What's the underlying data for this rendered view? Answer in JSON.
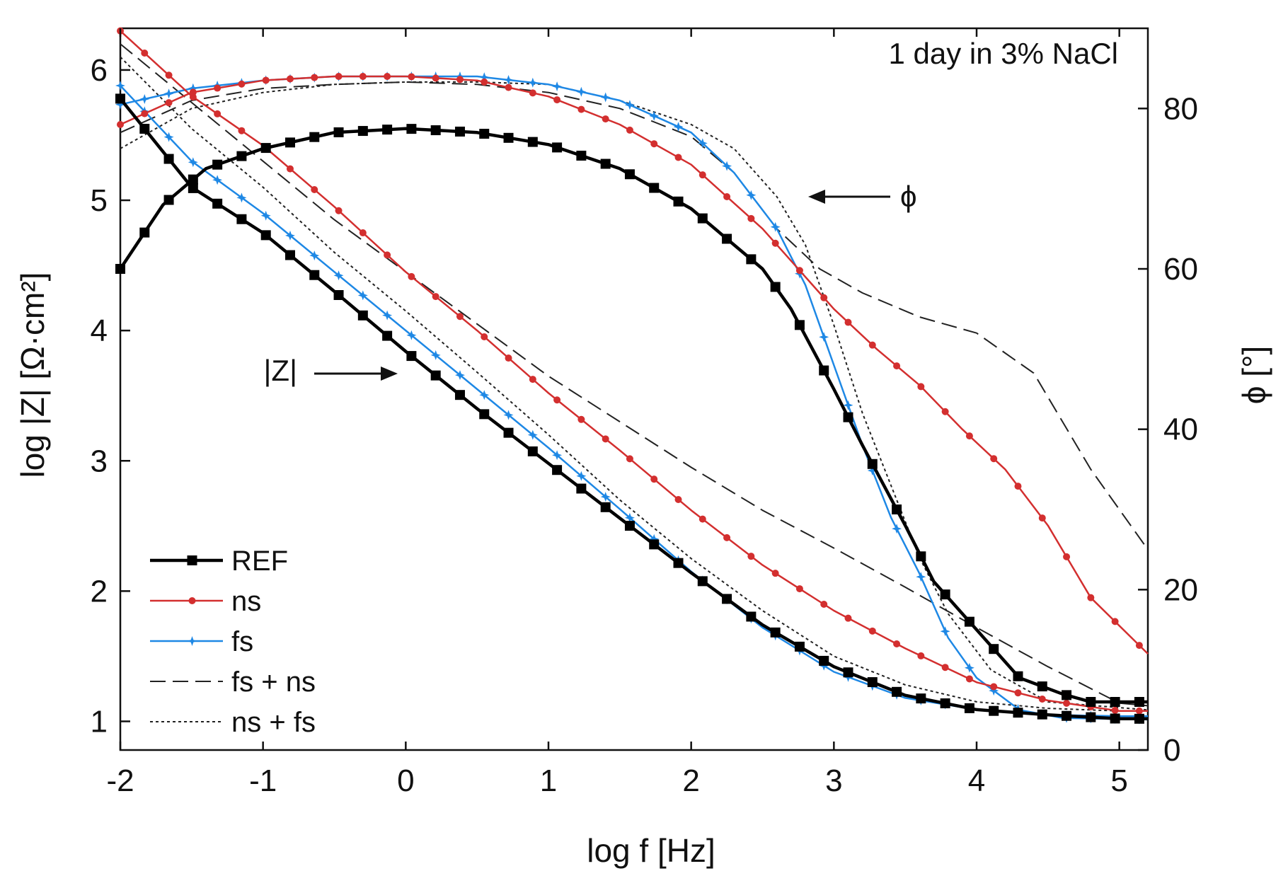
{
  "chart_data": {
    "type": "line",
    "annotation": "1 day in 3% NaCl",
    "xlabel": "log f [Hz]",
    "ylabel_left": "log |Z| [Ω·cm²]",
    "ylabel_right": "ϕ [°]",
    "xlim": [
      -2,
      5.2
    ],
    "ylim_left": [
      0.78,
      6.32
    ],
    "ylim_right": [
      0,
      90
    ],
    "x_ticks": [
      "-2",
      "-1",
      "0",
      "1",
      "2",
      "3",
      "4",
      "5"
    ],
    "y_left_ticks": [
      "1",
      "2",
      "3",
      "4",
      "5",
      "6"
    ],
    "y_right_ticks": [
      "0",
      "20",
      "40",
      "60",
      "80"
    ],
    "arrow_labels": {
      "impedance": "|Z|",
      "phase": "ϕ"
    },
    "colors": {
      "REF": "#000000",
      "ns": "#d32f2f",
      "fs": "#1e88e5",
      "fs_ns": "#222222",
      "ns_fs": "#222222"
    },
    "legend": [
      {
        "key": "REF",
        "label": "REF",
        "style": "solid-thick",
        "marker": "square"
      },
      {
        "key": "ns",
        "label": "ns",
        "style": "solid",
        "marker": "dot"
      },
      {
        "key": "fs",
        "label": "fs",
        "style": "solid",
        "marker": "star"
      },
      {
        "key": "fs_ns",
        "label": "fs + ns",
        "style": "dashed",
        "marker": "none"
      },
      {
        "key": "ns_fs",
        "label": "ns + fs",
        "style": "dotted",
        "marker": "none"
      }
    ],
    "series": [
      {
        "key": "REF",
        "quantity": "logZ",
        "points": [
          [
            -2,
            5.78
          ],
          [
            -1.5,
            5.1
          ],
          [
            -1,
            4.75
          ],
          [
            -0.5,
            4.3
          ],
          [
            0,
            3.84
          ],
          [
            0.5,
            3.4
          ],
          [
            1,
            2.98
          ],
          [
            1.5,
            2.56
          ],
          [
            2,
            2.14
          ],
          [
            2.5,
            1.74
          ],
          [
            3,
            1.42
          ],
          [
            3.5,
            1.2
          ],
          [
            4,
            1.09
          ],
          [
            4.5,
            1.05
          ],
          [
            5,
            1.02
          ],
          [
            5.2,
            1.02
          ]
        ]
      },
      {
        "key": "ns",
        "quantity": "logZ",
        "points": [
          [
            -2,
            6.3
          ],
          [
            -1.5,
            5.8
          ],
          [
            -1,
            5.42
          ],
          [
            -0.5,
            4.95
          ],
          [
            0,
            4.45
          ],
          [
            0.5,
            4.0
          ],
          [
            1,
            3.52
          ],
          [
            1.5,
            3.08
          ],
          [
            2,
            2.62
          ],
          [
            2.5,
            2.2
          ],
          [
            3,
            1.85
          ],
          [
            3.5,
            1.56
          ],
          [
            4,
            1.3
          ],
          [
            4.5,
            1.16
          ],
          [
            5,
            1.08
          ],
          [
            5.2,
            1.08
          ]
        ]
      },
      {
        "key": "fs",
        "quantity": "logZ",
        "points": [
          [
            -2,
            5.88
          ],
          [
            -1.5,
            5.3
          ],
          [
            -1,
            4.9
          ],
          [
            -0.5,
            4.45
          ],
          [
            0,
            4.0
          ],
          [
            0.5,
            3.55
          ],
          [
            1,
            3.1
          ],
          [
            1.5,
            2.63
          ],
          [
            2,
            2.15
          ],
          [
            2.5,
            1.72
          ],
          [
            3,
            1.38
          ],
          [
            3.5,
            1.18
          ],
          [
            4,
            1.09
          ],
          [
            4.5,
            1.05
          ],
          [
            5,
            1.04
          ],
          [
            5.2,
            1.04
          ]
        ]
      },
      {
        "key": "fs_ns",
        "quantity": "logZ",
        "points": [
          [
            -2,
            6.2
          ],
          [
            -1.5,
            5.75
          ],
          [
            -1,
            5.3
          ],
          [
            -0.5,
            4.85
          ],
          [
            0,
            4.45
          ],
          [
            0.5,
            4.05
          ],
          [
            1,
            3.65
          ],
          [
            1.5,
            3.3
          ],
          [
            2,
            2.95
          ],
          [
            2.5,
            2.62
          ],
          [
            3,
            2.33
          ],
          [
            3.5,
            2.03
          ],
          [
            4,
            1.72
          ],
          [
            4.5,
            1.42
          ],
          [
            5,
            1.14
          ],
          [
            5.2,
            1.12
          ]
        ]
      },
      {
        "key": "ns_fs",
        "quantity": "logZ",
        "points": [
          [
            -2,
            6.1
          ],
          [
            -1.5,
            5.55
          ],
          [
            -1,
            5.1
          ],
          [
            -0.5,
            4.6
          ],
          [
            0,
            4.15
          ],
          [
            0.5,
            3.68
          ],
          [
            1,
            3.2
          ],
          [
            1.5,
            2.7
          ],
          [
            2,
            2.25
          ],
          [
            2.5,
            1.85
          ],
          [
            3,
            1.5
          ],
          [
            3.5,
            1.28
          ],
          [
            4,
            1.15
          ],
          [
            4.5,
            1.1
          ],
          [
            5,
            1.08
          ],
          [
            5.2,
            1.08
          ]
        ]
      },
      {
        "key": "REF",
        "quantity": "phase",
        "points": [
          [
            -2,
            60
          ],
          [
            -1.7,
            68
          ],
          [
            -1.4,
            72.5
          ],
          [
            -1,
            75
          ],
          [
            -0.5,
            77
          ],
          [
            0,
            77.5
          ],
          [
            0.5,
            77
          ],
          [
            1,
            75.5
          ],
          [
            1.5,
            72.5
          ],
          [
            2,
            67.5
          ],
          [
            2.5,
            60
          ],
          [
            2.7,
            55
          ],
          [
            3,
            45
          ],
          [
            3.2,
            38
          ],
          [
            3.5,
            28
          ],
          [
            3.7,
            21
          ],
          [
            4,
            15
          ],
          [
            4.3,
            9
          ],
          [
            4.6,
            7
          ],
          [
            4.8,
            6
          ],
          [
            5.2,
            6
          ]
        ]
      },
      {
        "key": "ns",
        "quantity": "phase",
        "points": [
          [
            -2,
            78
          ],
          [
            -1.5,
            82
          ],
          [
            -1,
            83.5
          ],
          [
            -0.5,
            84
          ],
          [
            0,
            84
          ],
          [
            0.5,
            83.5
          ],
          [
            1,
            81.5
          ],
          [
            1.5,
            78
          ],
          [
            2,
            73
          ],
          [
            2.5,
            65
          ],
          [
            2.8,
            59
          ],
          [
            3,
            55
          ],
          [
            3.3,
            50
          ],
          [
            3.6,
            45.5
          ],
          [
            3.9,
            40
          ],
          [
            4.2,
            35
          ],
          [
            4.5,
            28
          ],
          [
            4.8,
            19
          ],
          [
            5.2,
            12
          ]
        ]
      },
      {
        "key": "fs",
        "quantity": "phase",
        "points": [
          [
            -2,
            80.5
          ],
          [
            -1.5,
            82.5
          ],
          [
            -1,
            83.5
          ],
          [
            -0.5,
            84
          ],
          [
            0,
            84
          ],
          [
            0.5,
            84
          ],
          [
            1,
            83
          ],
          [
            1.5,
            81
          ],
          [
            2,
            77
          ],
          [
            2.3,
            72
          ],
          [
            2.6,
            65
          ],
          [
            2.8,
            58
          ],
          [
            3,
            48
          ],
          [
            3.2,
            38
          ],
          [
            3.4,
            29
          ],
          [
            3.6,
            22
          ],
          [
            3.8,
            14
          ],
          [
            4,
            9
          ],
          [
            4.3,
            5
          ],
          [
            4.6,
            4
          ],
          [
            5.2,
            3.8
          ]
        ]
      },
      {
        "key": "fs_ns",
        "quantity": "phase",
        "points": [
          [
            -2,
            77
          ],
          [
            -1.5,
            81
          ],
          [
            -1,
            82.5
          ],
          [
            -0.5,
            83
          ],
          [
            0,
            83.3
          ],
          [
            0.5,
            83
          ],
          [
            1,
            82
          ],
          [
            1.5,
            80
          ],
          [
            2,
            76.5
          ],
          [
            2.3,
            72
          ],
          [
            2.6,
            65
          ],
          [
            2.9,
            60
          ],
          [
            3.2,
            57
          ],
          [
            3.6,
            54
          ],
          [
            4,
            52
          ],
          [
            4.4,
            47
          ],
          [
            4.8,
            35
          ],
          [
            5.2,
            25
          ]
        ]
      },
      {
        "key": "ns_fs",
        "quantity": "phase",
        "points": [
          [
            -2,
            75
          ],
          [
            -1.5,
            80
          ],
          [
            -1,
            82
          ],
          [
            -0.5,
            83
          ],
          [
            0,
            83.3
          ],
          [
            0.5,
            83.3
          ],
          [
            1,
            83
          ],
          [
            1.5,
            81
          ],
          [
            2,
            78
          ],
          [
            2.3,
            75
          ],
          [
            2.6,
            69
          ],
          [
            2.8,
            63
          ],
          [
            3,
            53
          ],
          [
            3.2,
            42
          ],
          [
            3.4,
            33
          ],
          [
            3.6,
            24
          ],
          [
            3.8,
            17
          ],
          [
            4.1,
            10
          ],
          [
            4.5,
            6
          ],
          [
            5.2,
            5
          ]
        ]
      }
    ]
  }
}
